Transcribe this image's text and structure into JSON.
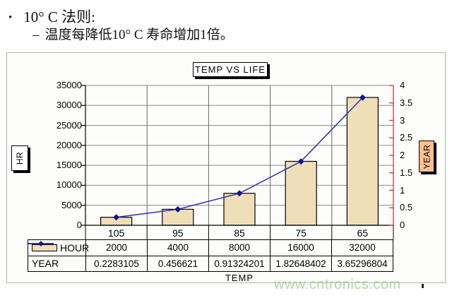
{
  "slide": {
    "bullet_glyph": "•",
    "title_line": "10° C 法则:",
    "sub_dash": "–",
    "sub_line": "温度每降低10° C 寿命增加1倍。",
    "watermark": "www.cntronics.com"
  },
  "chart_data": {
    "type": "bar+line-combo",
    "title": "TEMP VS LIFE",
    "categories": [
      "105",
      "95",
      "85",
      "75",
      "65"
    ],
    "xlabel": "TEMP",
    "grid": true,
    "legend_position": "data-table-left",
    "left_axis": {
      "label": "HR",
      "min": 0,
      "max": 35000,
      "ticks": [
        0,
        5000,
        10000,
        15000,
        20000,
        25000,
        30000,
        35000
      ]
    },
    "right_axis": {
      "label": "YEAR",
      "min": 0,
      "max": 4,
      "ticks": [
        0,
        0.5,
        1,
        1.5,
        2,
        2.5,
        3,
        3.5,
        4
      ]
    },
    "series": [
      {
        "name": "HOUR",
        "type": "bar",
        "axis": "left",
        "values": [
          2000,
          4000,
          8000,
          16000,
          32000
        ],
        "display": [
          "2000",
          "4000",
          "8000",
          "16000",
          "32000"
        ]
      },
      {
        "name": "YEAR",
        "type": "line",
        "axis": "right",
        "values": [
          0.2283105,
          0.456621,
          0.91324201,
          1.82648402,
          3.65296804
        ],
        "display": [
          "0.2283105",
          "0.456621",
          "0.91324201",
          "1.82648402",
          "3.65296804"
        ]
      }
    ]
  },
  "colors": {
    "bar_fill": "#EFDFB9",
    "bar_border": "#000000",
    "line": "#3838A8",
    "marker": "#14148C",
    "left_axis": "#000000",
    "right_axis": "#C8454F",
    "grid_h": "#8A8A8A",
    "grid_v": "#666666",
    "year_label_box": "#FAC090",
    "watermark": "#A8CF8E",
    "chart_background": "#FDFDFB",
    "chart_border": "#B5B5AD"
  }
}
